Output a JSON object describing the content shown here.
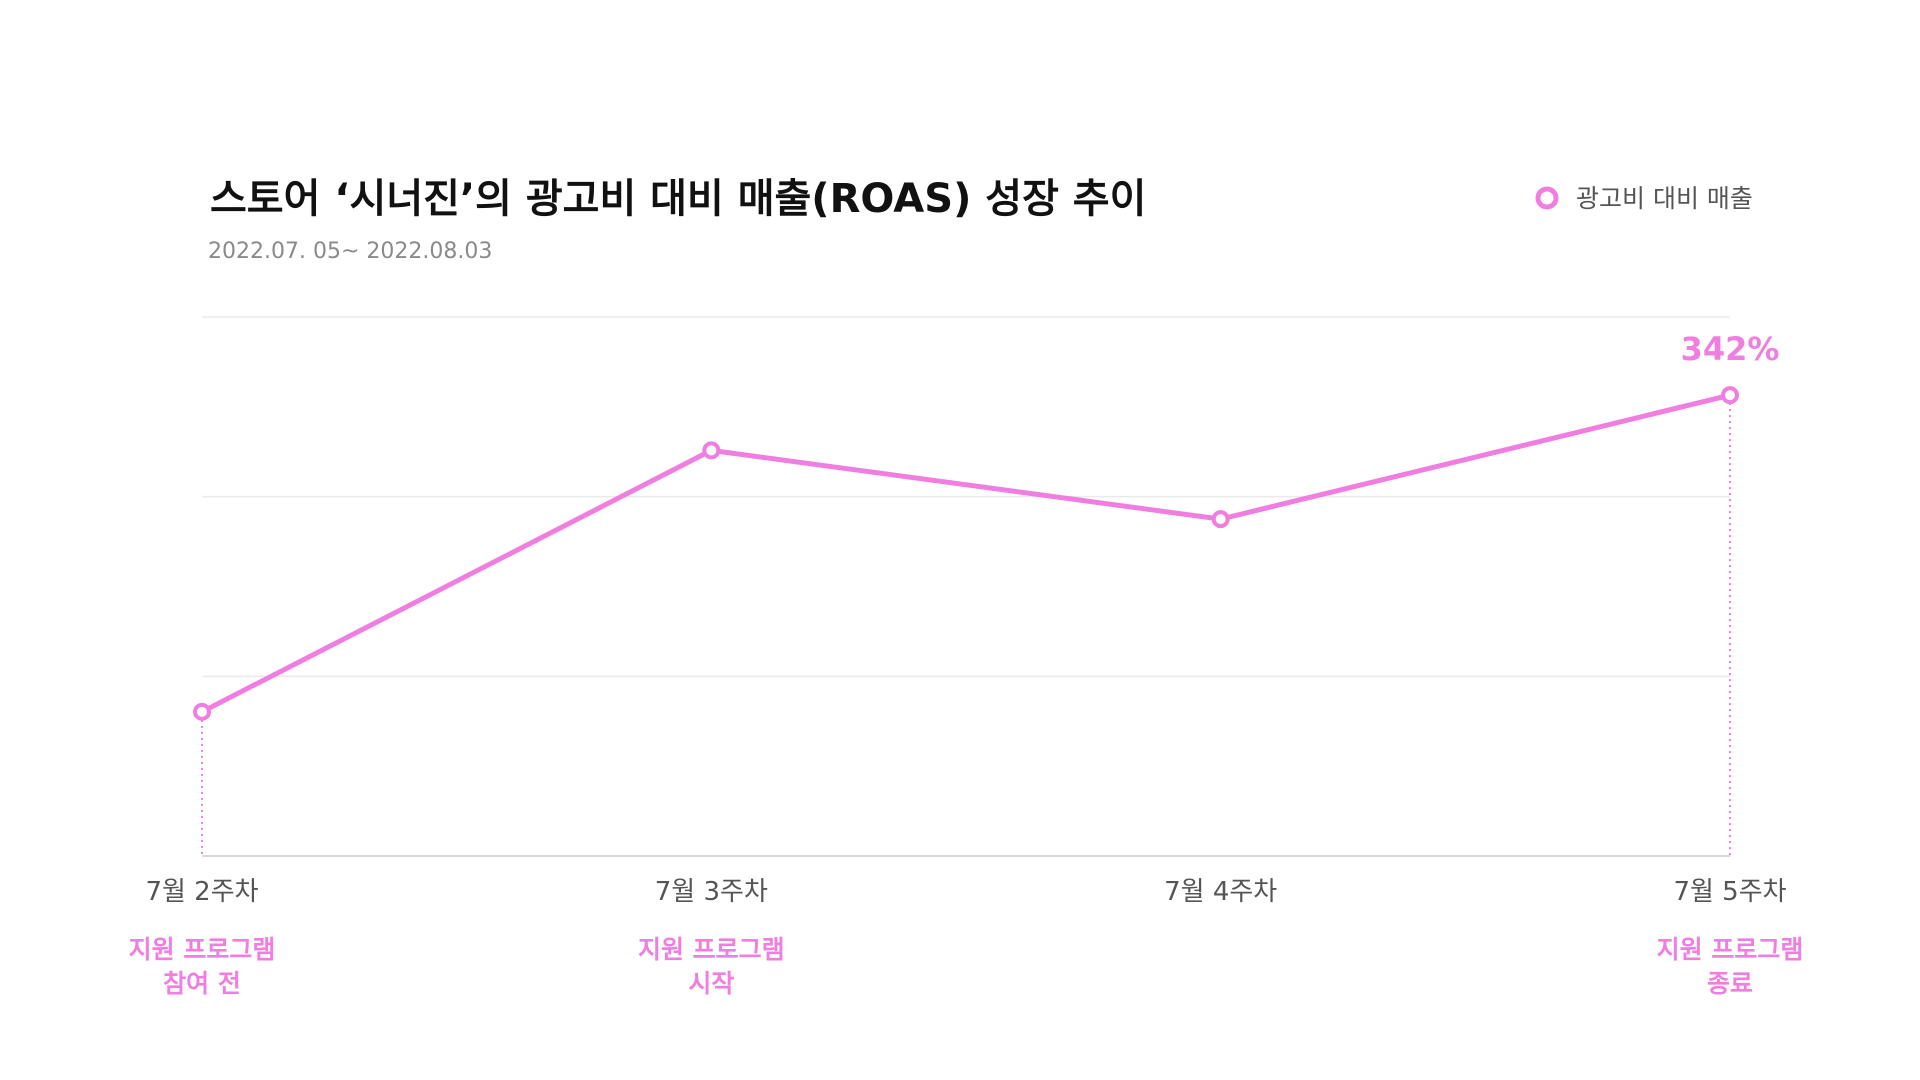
{
  "chart_data": {
    "type": "line",
    "title": "스토어 ‘시너진’의 광고비 대비 매출(ROAS) 성장 추이",
    "subtitle": "2022.07. 05~ 2022.08.03",
    "categories": [
      "7월 2주차",
      "7월 3주차",
      "7월 4주차",
      "7월 5주차"
    ],
    "series": [
      {
        "name": "광고비 대비 매출",
        "values": [
          107,
          301,
          250,
          342
        ],
        "color": "#f07ee0"
      }
    ],
    "data_labels": [
      {
        "index": 3,
        "text": "342%"
      }
    ],
    "annotations": [
      {
        "index": 0,
        "lines": [
          "지원 프로그램",
          "참여 전"
        ]
      },
      {
        "index": 1,
        "lines": [
          "지원 프로그램",
          "시작"
        ]
      },
      {
        "index": 3,
        "lines": [
          "지원 프로그램",
          "종료"
        ]
      }
    ],
    "ylim": [
      0,
      400
    ],
    "grid": true,
    "legend_position": "top-right",
    "colors": {
      "line": "#f07ee0",
      "grid": "#eaeaea",
      "axis": "#d9d9d9"
    }
  }
}
